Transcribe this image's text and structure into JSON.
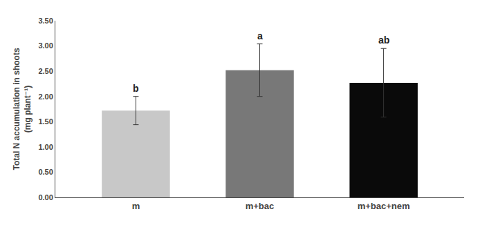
{
  "chart_data": {
    "type": "bar",
    "categories": [
      "m",
      "m+bac",
      "m+bac+nem"
    ],
    "values": [
      1.72,
      2.52,
      2.27
    ],
    "errors": [
      0.28,
      0.52,
      0.68
    ],
    "colors": [
      "#c8c8c8",
      "#787878",
      "#0a0a0a"
    ],
    "annotations": [
      {
        "x": "m",
        "text": "b"
      },
      {
        "x": "m+bac",
        "text": "a"
      },
      {
        "x": "m+bac+nem",
        "text": "ab"
      }
    ],
    "ylabel": "Total N accumulation in shoots\n(mg plant⁻¹)",
    "ylim": [
      0.0,
      3.5
    ],
    "yticks": [
      {
        "value": 0.0,
        "label": "0.00"
      },
      {
        "value": 0.5,
        "label": "0.50"
      },
      {
        "value": 1.0,
        "label": "1.00"
      },
      {
        "value": 1.5,
        "label": "1.50"
      },
      {
        "value": 2.0,
        "label": "2.00"
      },
      {
        "value": 2.5,
        "label": "2.50"
      },
      {
        "value": 3.0,
        "label": "3.00"
      },
      {
        "value": 3.5,
        "label": "3.50"
      }
    ],
    "grid": false
  }
}
